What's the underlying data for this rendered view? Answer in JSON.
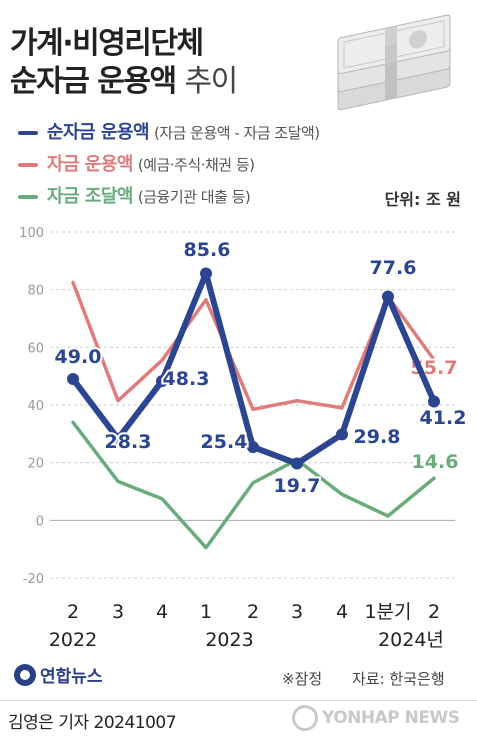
{
  "title": {
    "line1": "가계·비영리단체",
    "line2_bold": "순자금 운용액",
    "line2_light": "추이"
  },
  "legend": [
    {
      "name": "순자금 운용액",
      "note": "(자금 운용액 - 자금 조달액)",
      "color": "#2b4590"
    },
    {
      "name": "자금 운용액",
      "note": "(예금·주식·채권 등)",
      "color": "#e07b7b"
    },
    {
      "name": "자금 조달액",
      "note": "(금융기관 대출 등)",
      "color": "#6aab7c"
    }
  ],
  "unit": "단위: 조 원",
  "chart_data": {
    "type": "line",
    "categories": [
      "2",
      "3",
      "4",
      "1",
      "2",
      "3",
      "4",
      "1분기",
      "2"
    ],
    "year_labels": [
      {
        "label": "2022",
        "from": 0,
        "to": 0
      },
      {
        "label": "2023",
        "from": 3,
        "to": 4
      },
      {
        "label": "2024년",
        "from": 7,
        "to": 8
      }
    ],
    "ylim": [
      -20,
      100
    ],
    "yticks": [
      100,
      80,
      60,
      40,
      20,
      0,
      -20
    ],
    "grid": true,
    "series": [
      {
        "name": "자금 운용액",
        "color": "#e07b7b",
        "width": 3.5,
        "values": [
          82.5,
          41.5,
          55.5,
          76.5,
          38.5,
          41.5,
          39,
          77.6,
          55.7
        ],
        "labels": [
          null,
          null,
          null,
          null,
          null,
          null,
          null,
          null,
          "55.7"
        ]
      },
      {
        "name": "자금 조달액",
        "color": "#6aab7c",
        "width": 3.5,
        "values": [
          34,
          13.5,
          7.5,
          -9.5,
          13,
          21,
          9,
          1.5,
          14.6
        ],
        "labels": [
          null,
          null,
          null,
          null,
          null,
          null,
          null,
          null,
          "14.6"
        ]
      },
      {
        "name": "순자금 운용액",
        "color": "#2b4590",
        "width": 6,
        "values": [
          49.0,
          28.3,
          48.3,
          85.6,
          25.4,
          19.7,
          29.8,
          77.6,
          41.2
        ],
        "labels": [
          "49.0",
          "28.3",
          "48.3",
          "85.6",
          "25.4",
          "19.7",
          "29.8",
          "77.6",
          "41.2"
        ]
      }
    ]
  },
  "footer": {
    "logo": "연합뉴스",
    "preliminary": "※잠정",
    "source": "자료: 한국은행"
  },
  "credit": "김영은 기자  20241007",
  "watermark": "YONHAP NEWS"
}
